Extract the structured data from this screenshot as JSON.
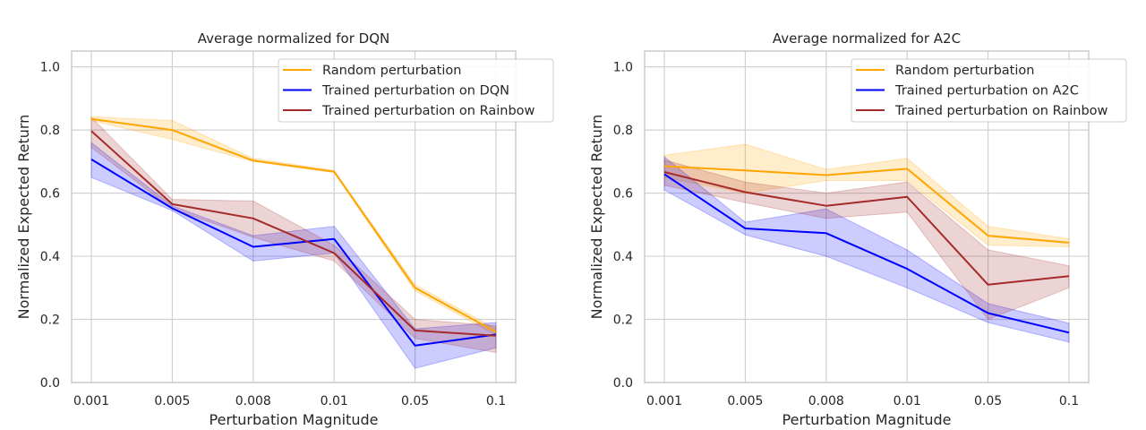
{
  "figure": {
    "colors": {
      "grid": "#d0d0d0",
      "axis": "#cccccc",
      "random": "#ffa500",
      "trained_own": "#0000ff",
      "trained_rainbow": "#a52a2a"
    }
  },
  "chart_data": [
    {
      "type": "line",
      "title": "Average normalized for DQN",
      "xlabel": "Perturbation Magnitude",
      "ylabel": "Normalized Expected Return",
      "categories": [
        "0.001",
        "0.005",
        "0.008",
        "0.01",
        "0.05",
        "0.1"
      ],
      "ylim": [
        0,
        1.05
      ],
      "yticks": [
        "0.0",
        "0.2",
        "0.4",
        "0.6",
        "0.8",
        "1.0"
      ],
      "grid": true,
      "legend_position": "top-right",
      "series": [
        {
          "name": "Random perturbation",
          "color": "#ffa500",
          "values": [
            0.835,
            0.8,
            0.703,
            0.668,
            0.3,
            0.16
          ],
          "lower": [
            0.83,
            0.77,
            0.7,
            0.665,
            0.29,
            0.15
          ],
          "upper": [
            0.842,
            0.83,
            0.71,
            0.672,
            0.31,
            0.17
          ]
        },
        {
          "name": "Trained perturbation on DQN",
          "color": "#0000ff",
          "values": [
            0.707,
            0.552,
            0.43,
            0.455,
            0.117,
            0.152
          ],
          "lower": [
            0.65,
            0.545,
            0.385,
            0.41,
            0.045,
            0.11
          ],
          "upper": [
            0.76,
            0.56,
            0.465,
            0.495,
            0.17,
            0.19
          ]
        },
        {
          "name": "Trained perturbation on Rainbow",
          "color": "#a52a2a",
          "values": [
            0.797,
            0.565,
            0.52,
            0.41,
            0.165,
            0.148
          ],
          "lower": [
            0.745,
            0.55,
            0.46,
            0.385,
            0.14,
            0.095
          ],
          "upper": [
            0.84,
            0.58,
            0.575,
            0.435,
            0.2,
            0.18
          ]
        }
      ]
    },
    {
      "type": "line",
      "title": "Average normalized for A2C",
      "xlabel": "Perturbation Magnitude",
      "ylabel": "Normalized Expected Return",
      "categories": [
        "0.001",
        "0.005",
        "0.008",
        "0.01",
        "0.05",
        "0.1"
      ],
      "ylim": [
        0,
        1.05
      ],
      "yticks": [
        "0.0",
        "0.2",
        "0.4",
        "0.6",
        "0.8",
        "1.0"
      ],
      "grid": true,
      "legend_position": "top-right",
      "series": [
        {
          "name": "Random perturbation",
          "color": "#ffa500",
          "values": [
            0.685,
            0.672,
            0.657,
            0.677,
            0.465,
            0.443
          ],
          "lower": [
            0.65,
            0.6,
            0.64,
            0.64,
            0.435,
            0.43
          ],
          "upper": [
            0.72,
            0.755,
            0.675,
            0.71,
            0.495,
            0.455
          ]
        },
        {
          "name": "Trained perturbation on A2C",
          "color": "#0000ff",
          "values": [
            0.66,
            0.488,
            0.473,
            0.36,
            0.22,
            0.158
          ],
          "lower": [
            0.61,
            0.468,
            0.4,
            0.3,
            0.19,
            0.128
          ],
          "upper": [
            0.715,
            0.508,
            0.55,
            0.42,
            0.25,
            0.188
          ]
        },
        {
          "name": "Trained perturbation on Rainbow",
          "color": "#a52a2a",
          "values": [
            0.667,
            0.603,
            0.56,
            0.588,
            0.31,
            0.337
          ],
          "lower": [
            0.625,
            0.57,
            0.52,
            0.54,
            0.2,
            0.3
          ],
          "upper": [
            0.705,
            0.635,
            0.6,
            0.635,
            0.42,
            0.37
          ]
        }
      ]
    }
  ]
}
